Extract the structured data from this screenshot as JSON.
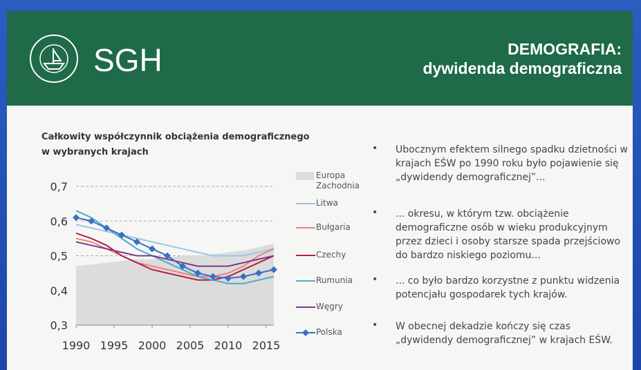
{
  "header": {
    "logo": "SGH",
    "title_lines": [
      "DEMOGRAFIA:",
      "dywidenda demograficzna"
    ]
  },
  "chart_data": {
    "type": "line",
    "title": "Całkowity współczynnik obciążenia demograficznego w wybranych krajach",
    "x": [
      1990,
      1992,
      1994,
      1996,
      1998,
      2000,
      2002,
      2004,
      2006,
      2008,
      2010,
      2012,
      2014,
      2016
    ],
    "series": [
      {
        "name": "Europa Zachodnia",
        "color": "#dcdcdc",
        "area": true,
        "values": [
          0.47,
          0.475,
          0.48,
          0.485,
          0.49,
          0.49,
          0.495,
          0.5,
          0.5,
          0.505,
          0.51,
          0.515,
          0.525,
          0.535
        ]
      },
      {
        "name": "Litwa",
        "color": "#9dc3e6",
        "values": [
          0.59,
          0.58,
          0.57,
          0.56,
          0.55,
          0.54,
          0.53,
          0.52,
          0.51,
          0.5,
          0.5,
          0.5,
          0.51,
          0.52
        ]
      },
      {
        "name": "Bułgaria",
        "color": "#f08080",
        "values": [
          0.55,
          0.54,
          0.52,
          0.5,
          0.48,
          0.47,
          0.46,
          0.45,
          0.44,
          0.44,
          0.45,
          0.47,
          0.5,
          0.52
        ]
      },
      {
        "name": "Czechy",
        "color": "#b02040",
        "values": [
          0.565,
          0.55,
          0.53,
          0.5,
          0.48,
          0.46,
          0.45,
          0.44,
          0.43,
          0.43,
          0.44,
          0.46,
          0.48,
          0.5
        ]
      },
      {
        "name": "Rumunia",
        "color": "#4bacc6",
        "values": [
          0.63,
          0.61,
          0.58,
          0.55,
          0.52,
          0.5,
          0.48,
          0.46,
          0.44,
          0.43,
          0.42,
          0.42,
          0.43,
          0.44
        ]
      },
      {
        "name": "Węgry",
        "color": "#7a3a8c",
        "values": [
          0.54,
          0.53,
          0.52,
          0.51,
          0.5,
          0.5,
          0.49,
          0.48,
          0.47,
          0.47,
          0.47,
          0.48,
          0.49,
          0.5
        ]
      },
      {
        "name": "Polska",
        "color": "#3a6fc4",
        "marker": "diamond",
        "values": [
          0.61,
          0.6,
          0.58,
          0.56,
          0.54,
          0.52,
          0.5,
          0.47,
          0.45,
          0.44,
          0.435,
          0.44,
          0.45,
          0.46
        ]
      }
    ],
    "xlim": [
      1990,
      2016
    ],
    "xticks": [
      1990,
      1995,
      2000,
      2005,
      2010,
      2015
    ],
    "ylim": [
      0.3,
      0.7
    ],
    "yticks": [
      {
        "value": 0.3,
        "label": "0,3"
      },
      {
        "value": 0.4,
        "label": "0,4"
      },
      {
        "value": 0.5,
        "label": "0,5"
      },
      {
        "value": 0.6,
        "label": "0,6"
      },
      {
        "value": 0.7,
        "label": "0,7"
      }
    ],
    "grid": true
  },
  "bullets": [
    "Ubocznym efektem silnego spadku dzietności w krajach EŚW po 1990 roku było pojawienie się „dywidendy demograficznej”...",
    "... okresu, w którym tzw. obciążenie demograficzne osób w wieku produkcyjnym przez dzieci i osoby starsze spada przejściowo do bardzo niskiego poziomu...",
    "... co było bardzo korzystne z punktu widzenia potencjału gospodarek tych krajów.",
    "W obecnej dekadzie kończy się czas „dywidendy demograficznej” w krajach EŚW."
  ]
}
